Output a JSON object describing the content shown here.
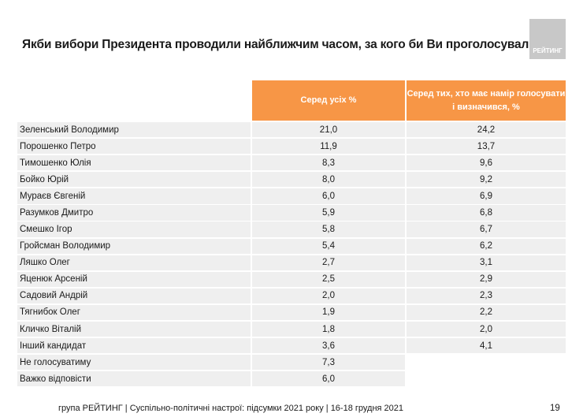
{
  "title": "Якби вибори Президента проводили найближчим часом, за кого би Ви проголосували?",
  "logo_text": "РЕЙТИНГ",
  "headers": [
    "Серед усіх %",
    "Серед тих, хто має намір голосувати і визначився, %"
  ],
  "rows": [
    {
      "name": "Зеленський Володимир",
      "all": "21,0",
      "decided": "24,2"
    },
    {
      "name": "Порошенко Петро",
      "all": "11,9",
      "decided": "13,7"
    },
    {
      "name": "Тимошенко Юлія",
      "all": "8,3",
      "decided": "9,6"
    },
    {
      "name": "Бойко Юрій",
      "all": "8,0",
      "decided": "9,2"
    },
    {
      "name": "Мураєв Євгеній",
      "all": "6,0",
      "decided": "6,9"
    },
    {
      "name": "Разумков Дмитро",
      "all": "5,9",
      "decided": "6,8"
    },
    {
      "name": "Смешко Ігор",
      "all": "5,8",
      "decided": "6,7"
    },
    {
      "name": "Гройсман Володимир",
      "all": "5,4",
      "decided": "6,2"
    },
    {
      "name": "Ляшко Олег",
      "all": "2,7",
      "decided": "3,1"
    },
    {
      "name": "Яценюк Арсеній",
      "all": "2,5",
      "decided": "2,9"
    },
    {
      "name": "Садовий Андрій",
      "all": "2,0",
      "decided": "2,3"
    },
    {
      "name": "Тягнибок Олег",
      "all": "1,9",
      "decided": "2,2"
    },
    {
      "name": "Кличко Віталій",
      "all": "1,8",
      "decided": "2,0"
    },
    {
      "name": "Інший кандидат",
      "all": "3,6",
      "decided": "4,1"
    },
    {
      "name": "Не голосуватиму",
      "all": "7,3",
      "decided": null
    },
    {
      "name": "Важко відповісти",
      "all": "6,0",
      "decided": null
    }
  ],
  "footer": "група РЕЙТИНГ | Суспільно-політичні настрої: підсумки 2021 року | 16-18 грудня 2021",
  "page_number": "19",
  "colors": {
    "header_bg": "#f79646",
    "row_bg": "#efefef"
  }
}
